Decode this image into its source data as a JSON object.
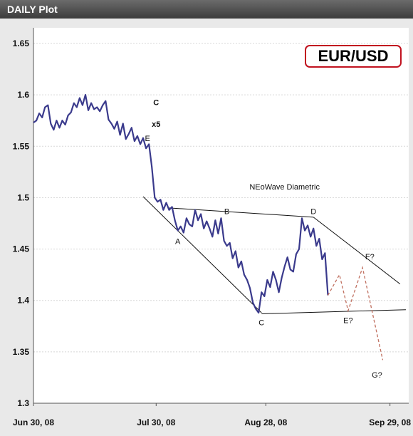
{
  "window": {
    "title": "DAILY Plot"
  },
  "chart_data": {
    "type": "line",
    "title": "EUR/USD",
    "xlabel": "",
    "ylabel": "",
    "ylim": [
      1.3,
      1.65
    ],
    "x_ticks": [
      "Jun 30, 08",
      "Jul 30, 08",
      "Aug 28, 08",
      "Sep 29, 08"
    ],
    "y_ticks": [
      1.3,
      1.35,
      1.4,
      1.45,
      1.5,
      1.55,
      1.6,
      1.65
    ],
    "grid": true,
    "series": [
      {
        "color": "#3a3a8c",
        "points": [
          [
            0,
            1.573
          ],
          [
            1,
            1.575
          ],
          [
            2,
            1.582
          ],
          [
            3,
            1.578
          ],
          [
            4,
            1.588
          ],
          [
            5,
            1.59
          ],
          [
            6,
            1.572
          ],
          [
            7,
            1.566
          ],
          [
            8,
            1.575
          ],
          [
            9,
            1.568
          ],
          [
            10,
            1.575
          ],
          [
            11,
            1.571
          ],
          [
            12,
            1.58
          ],
          [
            13,
            1.583
          ],
          [
            14,
            1.592
          ],
          [
            15,
            1.588
          ],
          [
            16,
            1.597
          ],
          [
            17,
            1.59
          ],
          [
            18,
            1.6
          ],
          [
            19,
            1.585
          ],
          [
            20,
            1.592
          ],
          [
            21,
            1.586
          ],
          [
            22,
            1.588
          ],
          [
            23,
            1.584
          ],
          [
            24,
            1.59
          ],
          [
            25,
            1.594
          ],
          [
            26,
            1.576
          ],
          [
            27,
            1.572
          ],
          [
            28,
            1.567
          ],
          [
            29,
            1.574
          ],
          [
            30,
            1.561
          ],
          [
            31,
            1.572
          ],
          [
            32,
            1.557
          ],
          [
            33,
            1.562
          ],
          [
            34,
            1.568
          ],
          [
            35,
            1.555
          ],
          [
            36,
            1.56
          ],
          [
            37,
            1.552
          ],
          [
            38,
            1.558
          ],
          [
            39,
            1.548
          ],
          [
            40,
            1.552
          ],
          [
            41,
            1.53
          ],
          [
            42,
            1.5
          ],
          [
            43,
            1.496
          ],
          [
            44,
            1.498
          ],
          [
            45,
            1.488
          ],
          [
            46,
            1.495
          ],
          [
            47,
            1.488
          ],
          [
            48,
            1.491
          ],
          [
            49,
            1.478
          ],
          [
            50,
            1.468
          ],
          [
            51,
            1.472
          ],
          [
            52,
            1.466
          ],
          [
            53,
            1.48
          ],
          [
            54,
            1.474
          ],
          [
            55,
            1.472
          ],
          [
            56,
            1.488
          ],
          [
            57,
            1.478
          ],
          [
            58,
            1.484
          ],
          [
            59,
            1.47
          ],
          [
            60,
            1.477
          ],
          [
            61,
            1.47
          ],
          [
            62,
            1.462
          ],
          [
            63,
            1.478
          ],
          [
            64,
            1.465
          ],
          [
            65,
            1.48
          ],
          [
            66,
            1.458
          ],
          [
            67,
            1.453
          ],
          [
            68,
            1.456
          ],
          [
            69,
            1.441
          ],
          [
            70,
            1.448
          ],
          [
            71,
            1.432
          ],
          [
            72,
            1.438
          ],
          [
            73,
            1.425
          ],
          [
            74,
            1.42
          ],
          [
            75,
            1.412
          ],
          [
            76,
            1.398
          ],
          [
            77,
            1.392
          ],
          [
            78,
            1.388
          ],
          [
            79,
            1.408
          ],
          [
            80,
            1.404
          ],
          [
            81,
            1.42
          ],
          [
            82,
            1.413
          ],
          [
            83,
            1.428
          ],
          [
            84,
            1.42
          ],
          [
            85,
            1.408
          ],
          [
            86,
            1.422
          ],
          [
            87,
            1.433
          ],
          [
            88,
            1.442
          ],
          [
            89,
            1.43
          ],
          [
            90,
            1.428
          ],
          [
            91,
            1.445
          ],
          [
            92,
            1.45
          ],
          [
            93,
            1.48
          ],
          [
            94,
            1.468
          ],
          [
            95,
            1.473
          ],
          [
            96,
            1.462
          ],
          [
            97,
            1.47
          ],
          [
            98,
            1.453
          ],
          [
            99,
            1.46
          ],
          [
            100,
            1.44
          ],
          [
            101,
            1.446
          ],
          [
            102,
            1.405
          ]
        ]
      }
    ],
    "projection": {
      "color": "#c07060",
      "points": [
        [
          102,
          1.405
        ],
        [
          106,
          1.425
        ],
        [
          109,
          1.39
        ],
        [
          114,
          1.432
        ],
        [
          121,
          1.342
        ]
      ]
    },
    "trendlines": [
      {
        "from": [
          38,
          1.501
        ],
        "to": [
          79,
          1.388
        ]
      },
      {
        "from": [
          47,
          1.49
        ],
        "to": [
          97,
          1.481
        ]
      },
      {
        "from": [
          79,
          1.387
        ],
        "to": [
          129,
          1.391
        ]
      },
      {
        "from": [
          97,
          1.481
        ],
        "to": [
          127,
          1.416
        ]
      }
    ],
    "annotations": [
      {
        "text": "E",
        "at": [
          39.5,
          1.555
        ],
        "size": "small"
      },
      {
        "text": "A",
        "at": [
          50,
          1.455
        ],
        "size": "small"
      },
      {
        "text": "B",
        "at": [
          67,
          1.484
        ],
        "size": "small"
      },
      {
        "text": "C",
        "at": [
          79,
          1.376
        ],
        "size": "small"
      },
      {
        "text": "D",
        "at": [
          97,
          1.484
        ],
        "size": "small"
      },
      {
        "text": "E?",
        "at": [
          109,
          1.378
        ],
        "size": "small"
      },
      {
        "text": "F?",
        "at": [
          116.5,
          1.44
        ],
        "size": "small"
      },
      {
        "text": "G?",
        "at": [
          119,
          1.325
        ],
        "size": "small"
      },
      {
        "text": "NEoWave Diametric",
        "at": [
          87,
          1.508
        ],
        "size": "medium"
      },
      {
        "text": "C",
        "at": [
          42.5,
          1.59
        ],
        "size": "large"
      },
      {
        "text": "x5",
        "at": [
          42.5,
          1.569
        ],
        "size": "medium"
      }
    ]
  }
}
